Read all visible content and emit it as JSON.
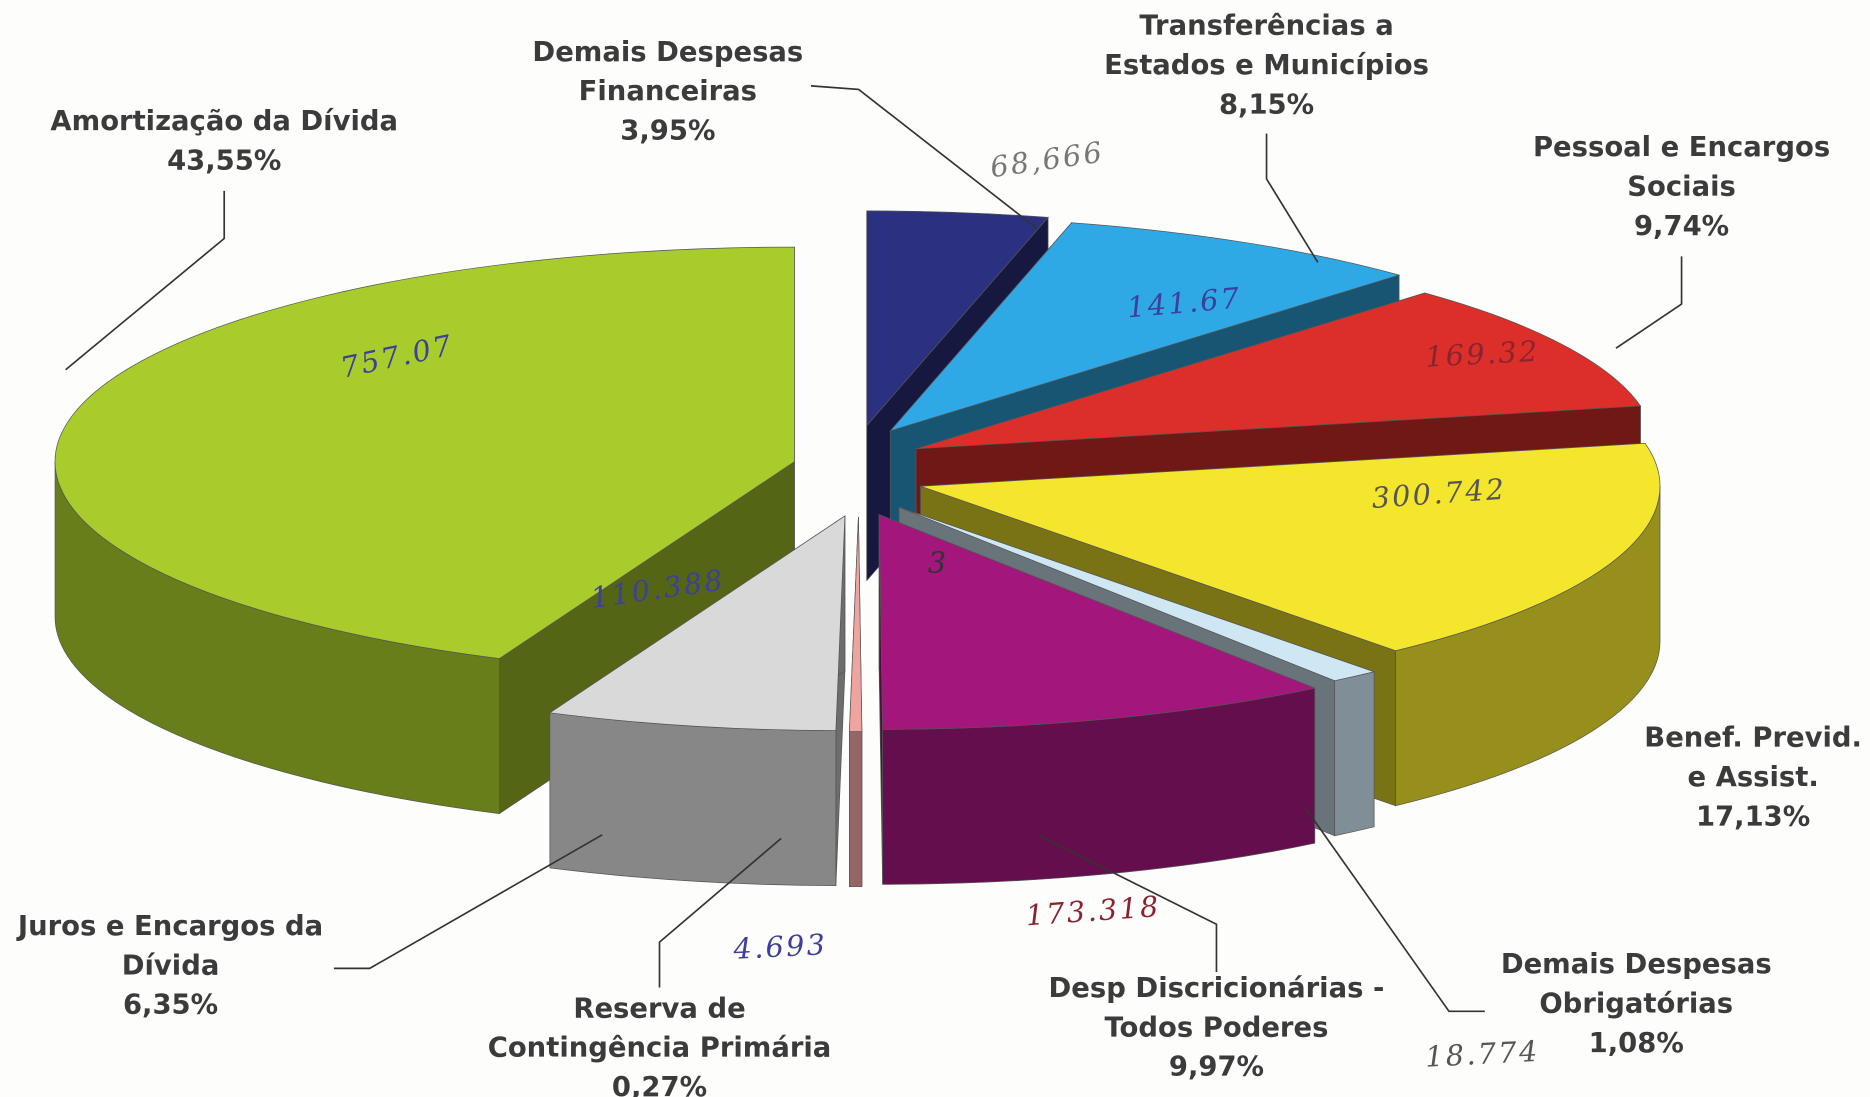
{
  "chart_data": {
    "type": "pie3d",
    "categories": [
      "Demais Despesas Financeiras",
      "Transferências a Estados e Municípios",
      "Pessoal e Encargos Sociais",
      "Benef. Previd. e Assist.",
      "Demais Despesas Obrigatórias",
      "Desp Discricionárias - Todos Poderes",
      "Reserva de Contingência Primária",
      "Juros e Encargos da Dívida",
      "Amortização da Dívida"
    ],
    "values": [
      3.95,
      8.15,
      9.74,
      17.13,
      1.08,
      9.97,
      0.27,
      6.35,
      43.55
    ],
    "value_labels": [
      "3,95%",
      "8,15%",
      "9,74%",
      "17,13%",
      "1,08%",
      "9,97%",
      "0,27%",
      "6,35%",
      "43,55%"
    ],
    "colors": [
      "#2b3080",
      "#2fa9e6",
      "#dd2f2a",
      "#f4e62c",
      "#cfe7f3",
      "#a3167c",
      "#f0a4a0",
      "#d9d9d9",
      "#a8cc2c"
    ],
    "handwritten": [
      "68,666",
      "141.67",
      "169.32",
      "300.742",
      "18.774",
      "173.318",
      "4.693",
      "110.388",
      "757.07",
      "3"
    ]
  }
}
